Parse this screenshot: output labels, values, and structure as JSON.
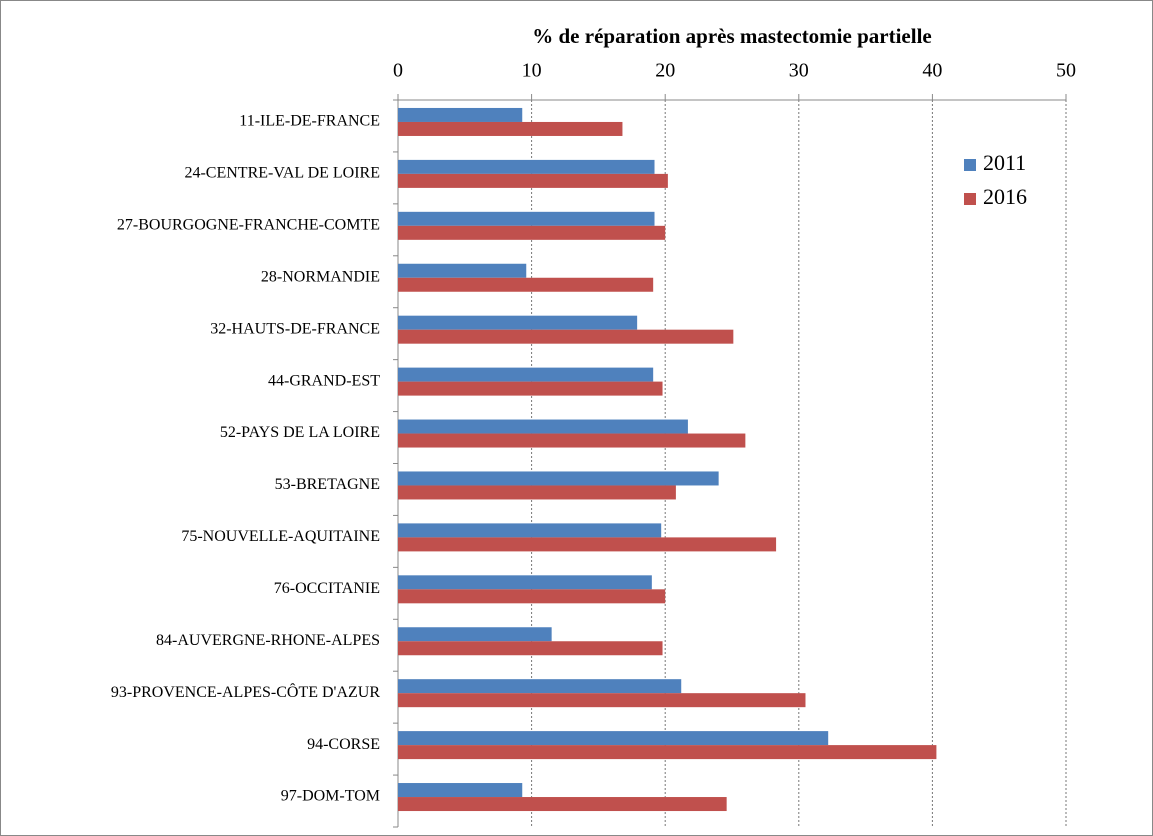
{
  "chart_data": {
    "type": "barh",
    "title": "% de réparation après mastectomie partielle",
    "categories": [
      "11-ILE-DE-FRANCE",
      "24-CENTRE-VAL DE LOIRE",
      "27-BOURGOGNE-FRANCHE-COMTE",
      "28-NORMANDIE",
      "32-HAUTS-DE-FRANCE",
      "44-GRAND-EST",
      "52-PAYS DE LA LOIRE",
      "53-BRETAGNE",
      "75-NOUVELLE-AQUITAINE",
      "76-OCCITANIE",
      "84-AUVERGNE-RHONE-ALPES",
      "93-PROVENCE-ALPES-CÔTE D'AZUR",
      "94-CORSE",
      "97-DOM-TOM"
    ],
    "series": [
      {
        "name": "2011",
        "color": "#4f81bd",
        "values": [
          9.3,
          19.2,
          19.2,
          9.6,
          17.9,
          19.1,
          21.7,
          24.0,
          19.7,
          19.0,
          11.5,
          21.2,
          32.2,
          9.3
        ]
      },
      {
        "name": "2016",
        "color": "#c0504d",
        "values": [
          16.8,
          20.2,
          20.0,
          19.1,
          25.1,
          19.8,
          26.0,
          20.8,
          28.3,
          20.0,
          19.8,
          30.5,
          40.3,
          24.6
        ]
      }
    ],
    "xlim": [
      0,
      50
    ],
    "xticks": [
      0,
      10,
      20,
      30,
      40,
      50
    ],
    "grid": true,
    "legend": "top-right"
  }
}
